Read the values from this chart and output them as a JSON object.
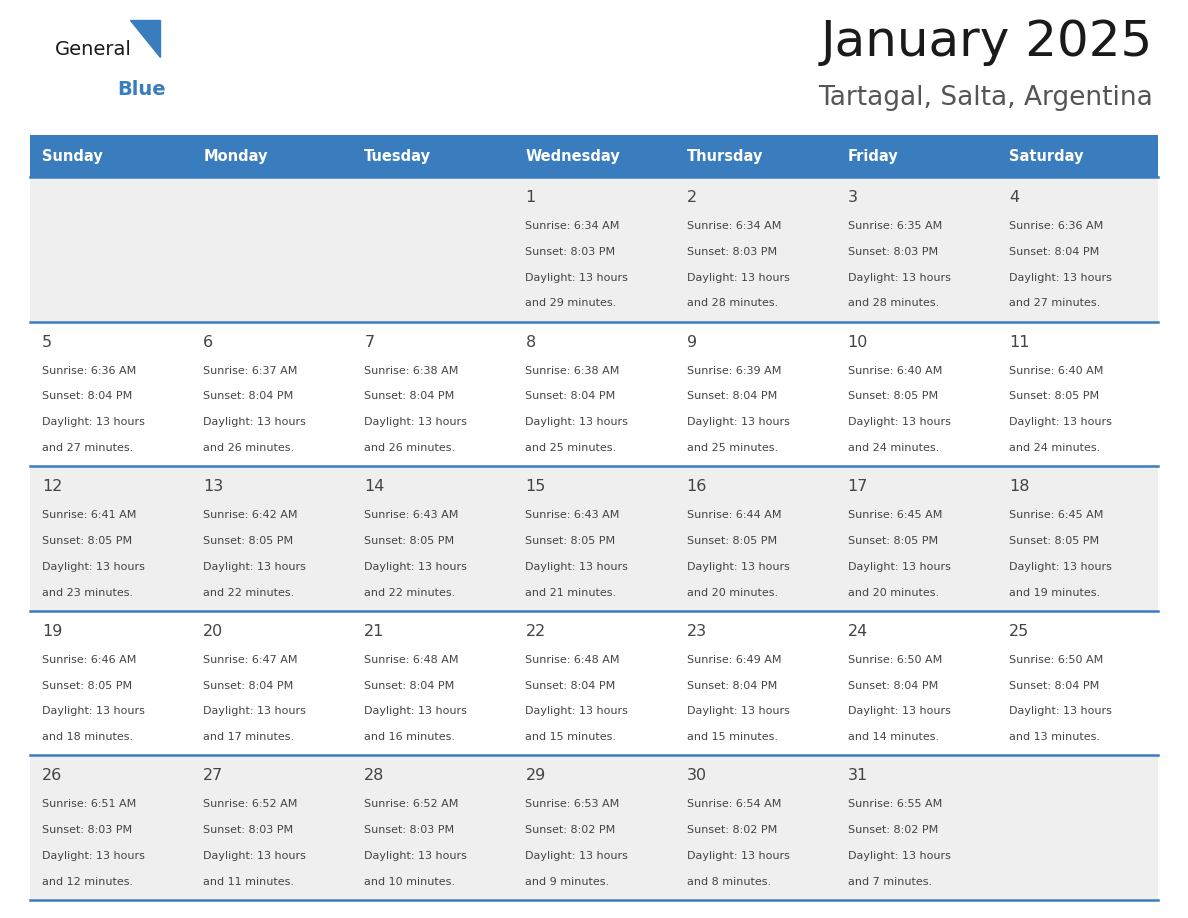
{
  "title": "January 2025",
  "subtitle": "Tartagal, Salta, Argentina",
  "header_color": "#3a7dbf",
  "header_text_color": "#ffffff",
  "cell_bg_light": "#efefef",
  "cell_bg_white": "#ffffff",
  "text_color": "#444444",
  "days_of_week": [
    "Sunday",
    "Monday",
    "Tuesday",
    "Wednesday",
    "Thursday",
    "Friday",
    "Saturday"
  ],
  "calendar_data": [
    [
      {
        "day": "",
        "sunrise": "",
        "sunset": "",
        "daylight_h": "",
        "daylight_m": ""
      },
      {
        "day": "",
        "sunrise": "",
        "sunset": "",
        "daylight_h": "",
        "daylight_m": ""
      },
      {
        "day": "",
        "sunrise": "",
        "sunset": "",
        "daylight_h": "",
        "daylight_m": ""
      },
      {
        "day": "1",
        "sunrise": "6:34 AM",
        "sunset": "8:03 PM",
        "daylight_h": "13 hours",
        "daylight_m": "and 29 minutes."
      },
      {
        "day": "2",
        "sunrise": "6:34 AM",
        "sunset": "8:03 PM",
        "daylight_h": "13 hours",
        "daylight_m": "and 28 minutes."
      },
      {
        "day": "3",
        "sunrise": "6:35 AM",
        "sunset": "8:03 PM",
        "daylight_h": "13 hours",
        "daylight_m": "and 28 minutes."
      },
      {
        "day": "4",
        "sunrise": "6:36 AM",
        "sunset": "8:04 PM",
        "daylight_h": "13 hours",
        "daylight_m": "and 27 minutes."
      }
    ],
    [
      {
        "day": "5",
        "sunrise": "6:36 AM",
        "sunset": "8:04 PM",
        "daylight_h": "13 hours",
        "daylight_m": "and 27 minutes."
      },
      {
        "day": "6",
        "sunrise": "6:37 AM",
        "sunset": "8:04 PM",
        "daylight_h": "13 hours",
        "daylight_m": "and 26 minutes."
      },
      {
        "day": "7",
        "sunrise": "6:38 AM",
        "sunset": "8:04 PM",
        "daylight_h": "13 hours",
        "daylight_m": "and 26 minutes."
      },
      {
        "day": "8",
        "sunrise": "6:38 AM",
        "sunset": "8:04 PM",
        "daylight_h": "13 hours",
        "daylight_m": "and 25 minutes."
      },
      {
        "day": "9",
        "sunrise": "6:39 AM",
        "sunset": "8:04 PM",
        "daylight_h": "13 hours",
        "daylight_m": "and 25 minutes."
      },
      {
        "day": "10",
        "sunrise": "6:40 AM",
        "sunset": "8:05 PM",
        "daylight_h": "13 hours",
        "daylight_m": "and 24 minutes."
      },
      {
        "day": "11",
        "sunrise": "6:40 AM",
        "sunset": "8:05 PM",
        "daylight_h": "13 hours",
        "daylight_m": "and 24 minutes."
      }
    ],
    [
      {
        "day": "12",
        "sunrise": "6:41 AM",
        "sunset": "8:05 PM",
        "daylight_h": "13 hours",
        "daylight_m": "and 23 minutes."
      },
      {
        "day": "13",
        "sunrise": "6:42 AM",
        "sunset": "8:05 PM",
        "daylight_h": "13 hours",
        "daylight_m": "and 22 minutes."
      },
      {
        "day": "14",
        "sunrise": "6:43 AM",
        "sunset": "8:05 PM",
        "daylight_h": "13 hours",
        "daylight_m": "and 22 minutes."
      },
      {
        "day": "15",
        "sunrise": "6:43 AM",
        "sunset": "8:05 PM",
        "daylight_h": "13 hours",
        "daylight_m": "and 21 minutes."
      },
      {
        "day": "16",
        "sunrise": "6:44 AM",
        "sunset": "8:05 PM",
        "daylight_h": "13 hours",
        "daylight_m": "and 20 minutes."
      },
      {
        "day": "17",
        "sunrise": "6:45 AM",
        "sunset": "8:05 PM",
        "daylight_h": "13 hours",
        "daylight_m": "and 20 minutes."
      },
      {
        "day": "18",
        "sunrise": "6:45 AM",
        "sunset": "8:05 PM",
        "daylight_h": "13 hours",
        "daylight_m": "and 19 minutes."
      }
    ],
    [
      {
        "day": "19",
        "sunrise": "6:46 AM",
        "sunset": "8:05 PM",
        "daylight_h": "13 hours",
        "daylight_m": "and 18 minutes."
      },
      {
        "day": "20",
        "sunrise": "6:47 AM",
        "sunset": "8:04 PM",
        "daylight_h": "13 hours",
        "daylight_m": "and 17 minutes."
      },
      {
        "day": "21",
        "sunrise": "6:48 AM",
        "sunset": "8:04 PM",
        "daylight_h": "13 hours",
        "daylight_m": "and 16 minutes."
      },
      {
        "day": "22",
        "sunrise": "6:48 AM",
        "sunset": "8:04 PM",
        "daylight_h": "13 hours",
        "daylight_m": "and 15 minutes."
      },
      {
        "day": "23",
        "sunrise": "6:49 AM",
        "sunset": "8:04 PM",
        "daylight_h": "13 hours",
        "daylight_m": "and 15 minutes."
      },
      {
        "day": "24",
        "sunrise": "6:50 AM",
        "sunset": "8:04 PM",
        "daylight_h": "13 hours",
        "daylight_m": "and 14 minutes."
      },
      {
        "day": "25",
        "sunrise": "6:50 AM",
        "sunset": "8:04 PM",
        "daylight_h": "13 hours",
        "daylight_m": "and 13 minutes."
      }
    ],
    [
      {
        "day": "26",
        "sunrise": "6:51 AM",
        "sunset": "8:03 PM",
        "daylight_h": "13 hours",
        "daylight_m": "and 12 minutes."
      },
      {
        "day": "27",
        "sunrise": "6:52 AM",
        "sunset": "8:03 PM",
        "daylight_h": "13 hours",
        "daylight_m": "and 11 minutes."
      },
      {
        "day": "28",
        "sunrise": "6:52 AM",
        "sunset": "8:03 PM",
        "daylight_h": "13 hours",
        "daylight_m": "and 10 minutes."
      },
      {
        "day": "29",
        "sunrise": "6:53 AM",
        "sunset": "8:02 PM",
        "daylight_h": "13 hours",
        "daylight_m": "and 9 minutes."
      },
      {
        "day": "30",
        "sunrise": "6:54 AM",
        "sunset": "8:02 PM",
        "daylight_h": "13 hours",
        "daylight_m": "and 8 minutes."
      },
      {
        "day": "31",
        "sunrise": "6:55 AM",
        "sunset": "8:02 PM",
        "daylight_h": "13 hours",
        "daylight_m": "and 7 minutes."
      },
      {
        "day": "",
        "sunrise": "",
        "sunset": "",
        "daylight_h": "",
        "daylight_m": ""
      }
    ]
  ]
}
